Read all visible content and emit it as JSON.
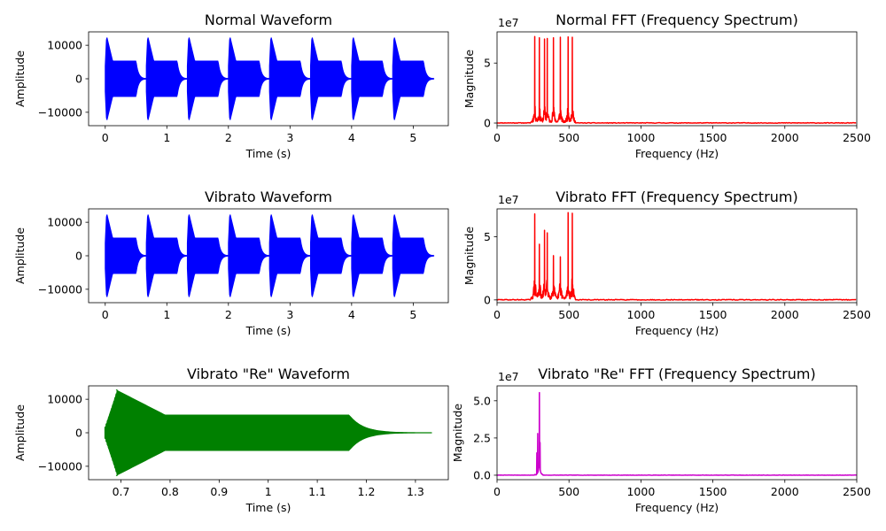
{
  "chart_data": [
    {
      "id": "normal_wave",
      "type": "line",
      "title": "Normal Waveform",
      "xlabel": "Time (s)",
      "ylabel": "Amplitude",
      "xlim": [
        -0.27,
        5.57
      ],
      "ylim": [
        -14000,
        14000
      ],
      "xticks": [
        0,
        1,
        2,
        3,
        4,
        5
      ],
      "yticks": [
        -10000,
        0,
        10000
      ],
      "color": "#0000ff",
      "series": [
        {
          "kind": "note_bursts",
          "starts": [
            0,
            0.667,
            1.333,
            2.0,
            2.667,
            3.333,
            4.0,
            4.667
          ],
          "note_length": 0.667,
          "peak": 12800,
          "sustain": 5300
        }
      ]
    },
    {
      "id": "normal_fft",
      "type": "line",
      "title": "Normal FFT (Frequency Spectrum)",
      "xlabel": "Frequency (Hz)",
      "ylabel": "Magnitude",
      "offset_text": "1e7",
      "xlim": [
        0,
        2500
      ],
      "ylim": [
        -2.2,
        76
      ],
      "xticks": [
        0,
        500,
        1000,
        1500,
        2000,
        2500
      ],
      "yticks": [
        0,
        5
      ],
      "ytick_scale": 10,
      "color": "#ff0000",
      "series": [
        {
          "kind": "spectrum",
          "peaks": [
            [
              262,
              72
            ],
            [
              294,
              71
            ],
            [
              330,
              70
            ],
            [
              349,
              70.5
            ],
            [
              392,
              71
            ],
            [
              440,
              71.5
            ],
            [
              494,
              71.8
            ],
            [
              523,
              71.5
            ]
          ],
          "side_level": 18,
          "noise": 0.5,
          "seed": 11
        }
      ]
    },
    {
      "id": "vibrato_wave",
      "type": "line",
      "title": "Vibrato Waveform",
      "xlabel": "Time (s)",
      "ylabel": "Amplitude",
      "xlim": [
        -0.27,
        5.57
      ],
      "ylim": [
        -14000,
        14000
      ],
      "xticks": [
        0,
        1,
        2,
        3,
        4,
        5
      ],
      "yticks": [
        -10000,
        0,
        10000
      ],
      "color": "#0000ff",
      "series": [
        {
          "kind": "note_bursts",
          "starts": [
            0,
            0.667,
            1.333,
            2.0,
            2.667,
            3.333,
            4.0,
            4.667
          ],
          "note_length": 0.667,
          "peak": 12800,
          "sustain": 5300
        }
      ]
    },
    {
      "id": "vibrato_fft",
      "type": "line",
      "title": "Vibrato FFT (Frequency Spectrum)",
      "xlabel": "Frequency (Hz)",
      "ylabel": "Magnitude",
      "offset_text": "1e7",
      "xlim": [
        0,
        2500
      ],
      "ylim": [
        -2.2,
        72
      ],
      "xticks": [
        0,
        500,
        1000,
        1500,
        2000,
        2500
      ],
      "yticks": [
        0,
        5
      ],
      "ytick_scale": 10,
      "color": "#ff0000",
      "series": [
        {
          "kind": "spectrum",
          "peaks": [
            [
              262,
              68
            ],
            [
              294,
              44
            ],
            [
              330,
              55
            ],
            [
              349,
              53
            ],
            [
              392,
              35
            ],
            [
              440,
              34
            ],
            [
              494,
              69
            ],
            [
              523,
              68.5
            ]
          ],
          "side_level": 22,
          "noise": 0.6,
          "seed": 29
        }
      ]
    },
    {
      "id": "re_wave",
      "type": "line",
      "title": "Vibrato \"Re\" Waveform",
      "xlabel": "Time (s)",
      "ylabel": "Amplitude",
      "xlim": [
        0.634,
        1.367
      ],
      "ylim": [
        -14000,
        14000
      ],
      "xticks": [
        0.7,
        0.8,
        0.9,
        1.0,
        1.1,
        1.2,
        1.3
      ],
      "yticks": [
        -10000,
        0,
        10000
      ],
      "color": "#008000",
      "series": [
        {
          "kind": "single_note",
          "start": 0.667,
          "attack_end": 0.69,
          "decay_end": 0.79,
          "release_start": 1.165,
          "end": 1.333,
          "peak": 12800,
          "sustain": 5300
        }
      ]
    },
    {
      "id": "re_fft",
      "type": "line",
      "title": "Vibrato \"Re\" FFT (Frequency Spectrum)",
      "xlabel": "Frequency (Hz)",
      "ylabel": "Magnitude",
      "offset_text": "1e7",
      "xlim": [
        0,
        2500
      ],
      "ylim": [
        -0.3,
        6.0
      ],
      "xticks": [
        0,
        500,
        1000,
        1500,
        2000,
        2500
      ],
      "yticks": [
        0,
        2.5,
        5.0
      ],
      "ytick_scale": 1,
      "color": "#cc00cc",
      "series": [
        {
          "kind": "spectrum_single",
          "center": 294,
          "peak_value": 5.55,
          "secondary": [
            [
              283,
              2.8
            ],
            [
              299,
              2.2
            ],
            [
              276,
              1.5
            ]
          ],
          "noise": 0.02,
          "seed": 7
        }
      ]
    }
  ]
}
